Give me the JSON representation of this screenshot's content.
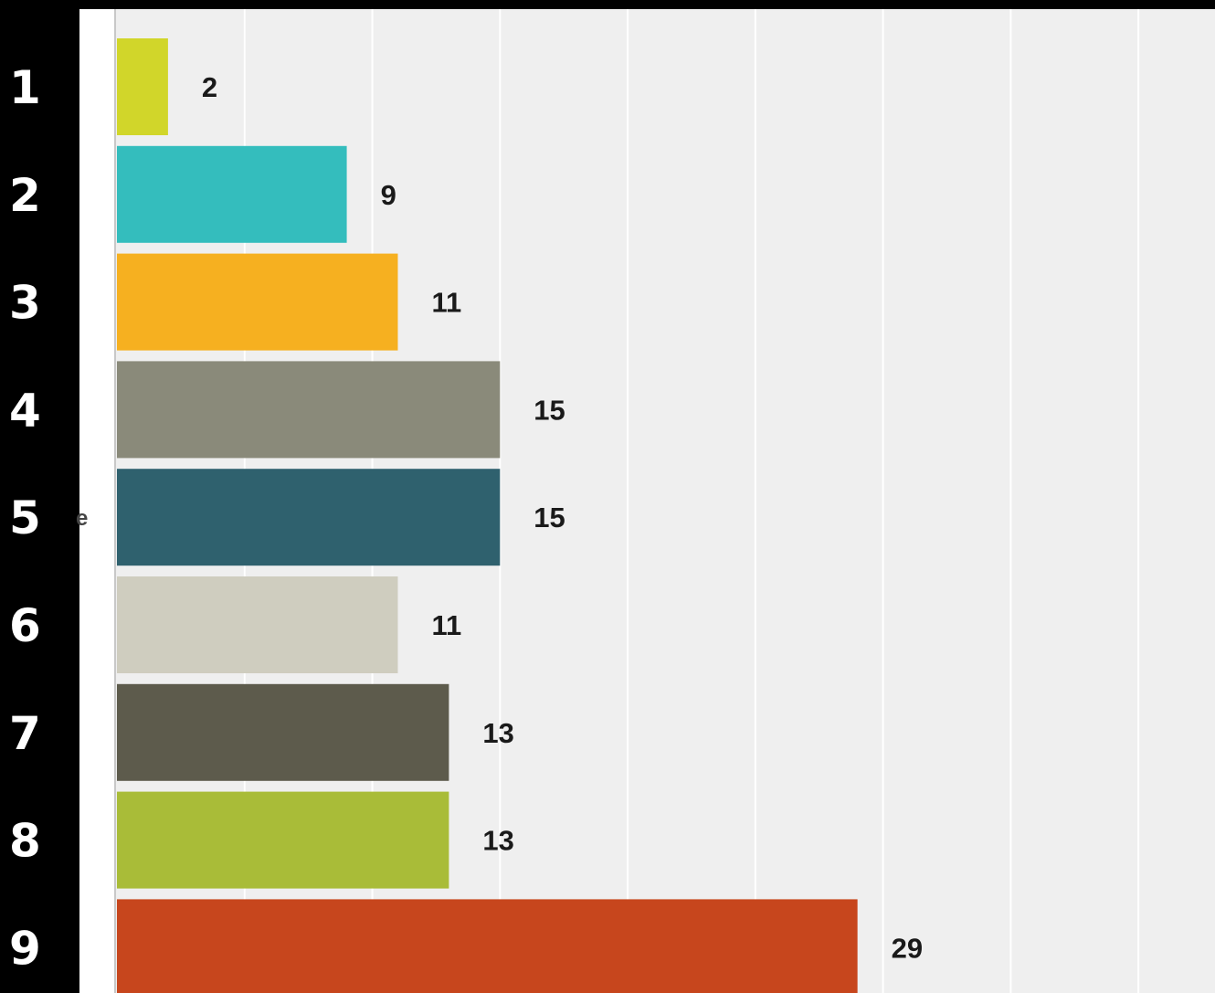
{
  "chart_data": {
    "type": "bar",
    "orientation": "horizontal",
    "categories": [
      "1",
      "2",
      "3",
      "4",
      "5",
      "6",
      "7",
      "8",
      "9"
    ],
    "values": [
      2,
      9,
      11,
      15,
      15,
      11,
      13,
      13,
      29
    ],
    "colors": [
      "#d1d62a",
      "#34bdbd",
      "#f6b020",
      "#8a8a7a",
      "#2f616e",
      "#cfcdbf",
      "#5d5b4c",
      "#a9bc38",
      "#c7461d"
    ],
    "xlim": [
      0,
      43
    ],
    "grid": true,
    "axis_label_fragment": "e",
    "background": "#efefef",
    "row_number_color": "#ffffff",
    "frame_color": "#000000"
  }
}
